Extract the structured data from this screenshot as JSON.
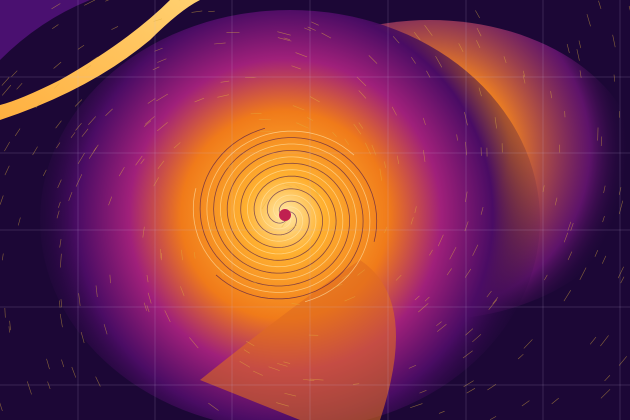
{
  "palette": {
    "background": "#1c0736",
    "deep": "#3a0a5e",
    "mid": "#8a1a8a",
    "warm": "#e8501e",
    "hot": "#ff9a1a",
    "bright": "#ffe08a",
    "grid": "#c8b8e0",
    "streamline": "#e0b040"
  }
}
